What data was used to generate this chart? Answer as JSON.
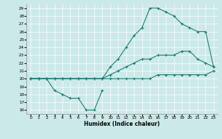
{
  "xlabel": "Humidex (Indice chaleur)",
  "bg_color": "#cce9e9",
  "line_color": "#1a7a6e",
  "xlim": [
    -0.5,
    23.5
  ],
  "ylim": [
    15.5,
    29.5
  ],
  "xticks": [
    0,
    1,
    2,
    3,
    4,
    5,
    6,
    7,
    8,
    9,
    10,
    11,
    12,
    13,
    14,
    15,
    16,
    17,
    18,
    19,
    20,
    21,
    22,
    23
  ],
  "yticks": [
    16,
    17,
    18,
    19,
    20,
    21,
    22,
    23,
    24,
    25,
    26,
    27,
    28,
    29
  ],
  "series": [
    {
      "x": [
        0,
        1,
        2,
        3,
        4,
        5,
        6,
        7,
        8,
        9
      ],
      "y": [
        20,
        20,
        20,
        18.5,
        18,
        17.5,
        17.5,
        16,
        16,
        18.5
      ]
    },
    {
      "x": [
        0,
        1,
        2,
        3,
        4,
        5,
        6,
        7,
        8,
        9,
        10,
        11,
        12,
        13,
        14,
        15,
        16,
        17,
        18,
        19,
        20,
        21,
        22,
        23
      ],
      "y": [
        20,
        20,
        20,
        20,
        20,
        20,
        20,
        20,
        20,
        20,
        21.5,
        22.5,
        24,
        25.5,
        26.5,
        29,
        29,
        28.5,
        28,
        27,
        26.5,
        26,
        26,
        21.5
      ]
    },
    {
      "x": [
        0,
        1,
        2,
        3,
        4,
        5,
        6,
        7,
        8,
        9,
        10,
        11,
        12,
        13,
        14,
        15,
        16,
        17,
        18,
        19,
        20,
        21,
        22,
        23
      ],
      "y": [
        20,
        20,
        20,
        20,
        20,
        20,
        20,
        20,
        20,
        20,
        20.5,
        21,
        21.5,
        22,
        22.5,
        22.5,
        23,
        23,
        23,
        23.5,
        23.5,
        22.5,
        22,
        21.5
      ]
    },
    {
      "x": [
        0,
        1,
        2,
        3,
        4,
        5,
        6,
        7,
        8,
        9,
        10,
        11,
        12,
        13,
        14,
        15,
        16,
        17,
        18,
        19,
        20,
        21,
        22,
        23
      ],
      "y": [
        20,
        20,
        20,
        20,
        20,
        20,
        20,
        20,
        20,
        20,
        20,
        20,
        20,
        20,
        20,
        20,
        20.5,
        20.5,
        20.5,
        20.5,
        20.5,
        20.5,
        20.5,
        21
      ]
    }
  ]
}
